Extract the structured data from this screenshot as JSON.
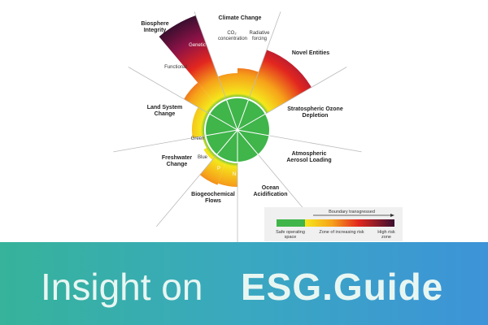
{
  "diagram": {
    "boundaries": [
      {
        "label": "Climate Change",
        "parts": [
          "CO₂ concentration",
          "Radiative forcing"
        ]
      },
      {
        "label": "Novel Entities"
      },
      {
        "label": "Stratospheric Ozone Depletion"
      },
      {
        "label": "Atmospheric Aerosol Loading"
      },
      {
        "label": "Ocean Acidification"
      },
      {
        "label": "Biogeochemical Flows",
        "parts": [
          "P",
          "N"
        ]
      },
      {
        "label": "Freshwater Change",
        "parts": [
          "Green",
          "Blue"
        ]
      },
      {
        "label": "Land System Change"
      },
      {
        "label": "Biosphere Integrity",
        "parts": [
          "Functional",
          "Genetic"
        ]
      }
    ],
    "legend": {
      "arrow": "Boundary transgressed",
      "zones": [
        "Safe operating space",
        "Zone of increasing risk",
        "High risk zone"
      ]
    }
  },
  "banner": {
    "text": "Insight on",
    "logo": "ESG.Guide"
  }
}
